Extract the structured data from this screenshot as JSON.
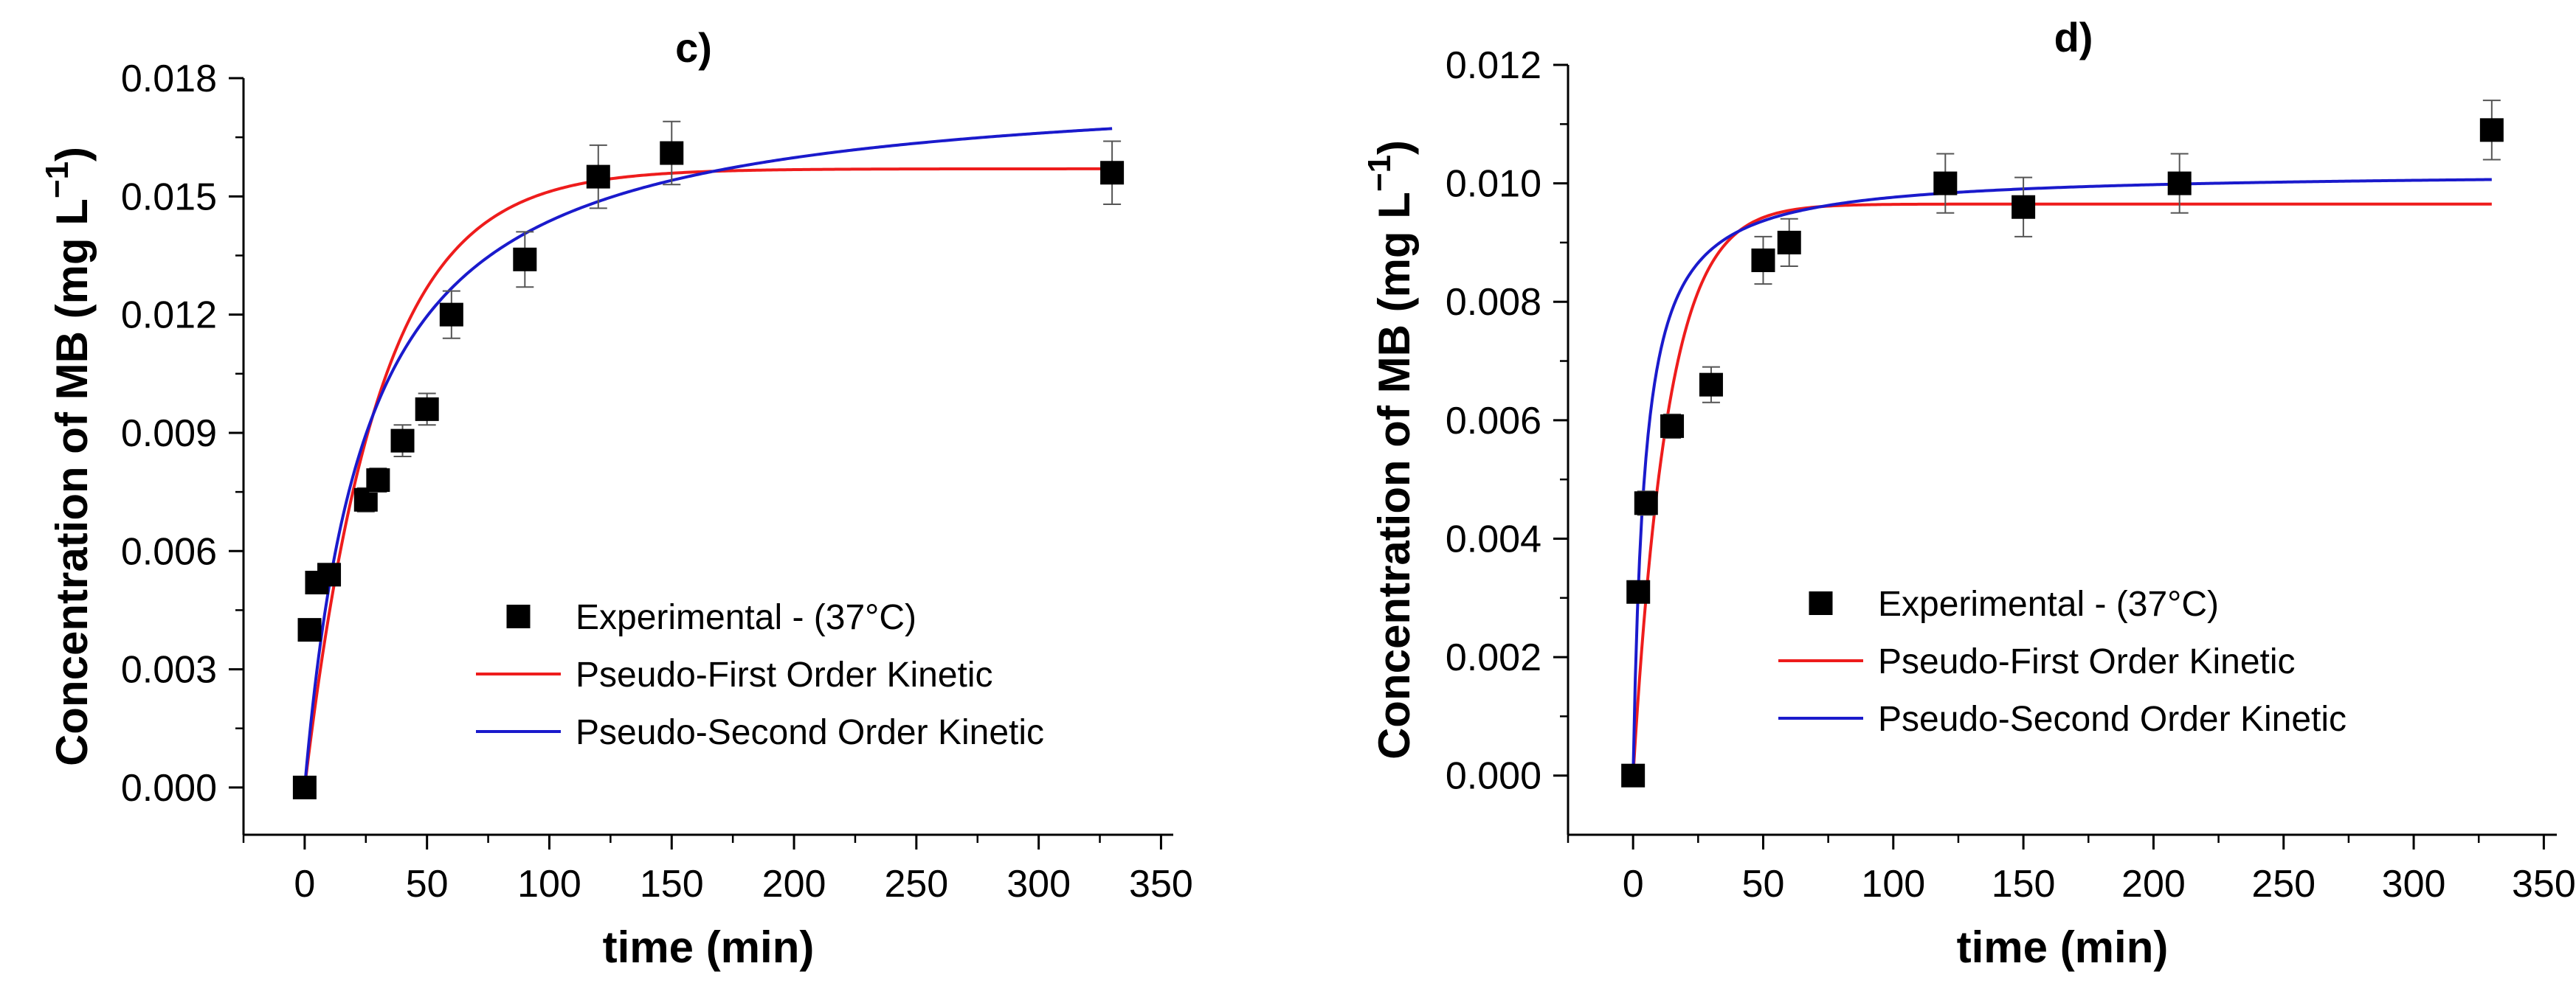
{
  "chart_data": [
    {
      "panel": "c)",
      "type": "scatter",
      "title": "c)",
      "xlabel": "time (min)",
      "ylabel": "Concentration of MB (mg L",
      "ylabel_sup": "−1",
      "ylabel_close": ")",
      "xlim": [
        -25,
        355
      ],
      "ylim": [
        -0.0012,
        0.018
      ],
      "xticks": [
        0,
        50,
        100,
        150,
        200,
        250,
        300,
        350
      ],
      "xtick_labels": [
        "0",
        "50",
        "100",
        "150",
        "200",
        "250",
        "300",
        "350"
      ],
      "yticks": [
        0.0,
        0.003,
        0.006,
        0.009,
        0.012,
        0.015,
        0.018
      ],
      "ytick_labels": [
        "0.000",
        "0.003",
        "0.006",
        "0.009",
        "0.012",
        "0.015",
        "0.018"
      ],
      "legend": {
        "position": "center-bottom",
        "entries": [
          "Experimental - (37°C)",
          "Pseudo-First Order Kinetic",
          "Pseudo-Second Order Kinetic"
        ]
      },
      "series": [
        {
          "name": "Experimental - (37°C)",
          "kind": "points",
          "color": "#000000",
          "x": [
            0,
            2,
            5,
            10,
            25,
            30,
            40,
            50,
            60,
            90,
            120,
            150,
            330
          ],
          "y": [
            0.0,
            0.004,
            0.0052,
            0.0054,
            0.0073,
            0.0078,
            0.0088,
            0.0096,
            0.012,
            0.0134,
            0.0155,
            0.0161,
            0.0156
          ],
          "err": [
            0.0001,
            0.0002,
            0.0002,
            0.0002,
            0.0003,
            0.0003,
            0.0004,
            0.0004,
            0.0006,
            0.0007,
            0.0008,
            0.0008,
            0.0008
          ]
        },
        {
          "name": "Pseudo-First Order Kinetic",
          "kind": "line",
          "color": "#ee1c1c",
          "model": "first",
          "qe": 0.0157,
          "k": 0.033,
          "x_range": [
            0,
            330
          ]
        },
        {
          "name": "Pseudo-Second Order Kinetic",
          "kind": "line",
          "color": "#1a1acc",
          "model": "second",
          "qe": 0.018,
          "k": 2.2,
          "x_range": [
            0,
            330
          ]
        }
      ]
    },
    {
      "panel": "d)",
      "type": "scatter",
      "title": "d)",
      "xlabel": "time (min)",
      "ylabel": "Concentration of MB (mg L",
      "ylabel_sup": "−1",
      "ylabel_close": ")",
      "xlim": [
        -25,
        355
      ],
      "ylim": [
        -0.001,
        0.012
      ],
      "xticks": [
        0,
        50,
        100,
        150,
        200,
        250,
        300,
        350
      ],
      "xtick_labels": [
        "0",
        "50",
        "100",
        "150",
        "200",
        "250",
        "300",
        "350"
      ],
      "yticks": [
        0.0,
        0.002,
        0.004,
        0.006,
        0.008,
        0.01,
        0.012
      ],
      "ytick_labels": [
        "0.000",
        "0.002",
        "0.004",
        "0.006",
        "0.008",
        "0.010",
        "0.012"
      ],
      "legend": {
        "position": "center-bottom",
        "entries": [
          "Experimental - (37°C)",
          "Pseudo-First Order Kinetic",
          "Pseudo-Second Order Kinetic"
        ]
      },
      "series": [
        {
          "name": "Experimental - (37°C)",
          "kind": "points",
          "color": "#000000",
          "x": [
            0,
            2,
            5,
            15,
            30,
            50,
            60,
            120,
            150,
            210,
            330
          ],
          "y": [
            0.0,
            0.0031,
            0.0046,
            0.0059,
            0.0066,
            0.0087,
            0.009,
            0.01,
            0.0096,
            0.01,
            0.0109
          ],
          "err": [
            0.0001,
            0.0001,
            0.0002,
            0.0002,
            0.0003,
            0.0004,
            0.0004,
            0.0005,
            0.0005,
            0.0005,
            0.0005
          ]
        },
        {
          "name": "Pseudo-First Order Kinetic",
          "kind": "line",
          "color": "#ee1c1c",
          "model": "first",
          "qe": 0.00965,
          "k": 0.075,
          "x_range": [
            0,
            330
          ]
        },
        {
          "name": "Pseudo-Second Order Kinetic",
          "kind": "line",
          "color": "#1a1acc",
          "model": "second",
          "qe": 0.0102,
          "k": 22,
          "x_range": [
            0,
            330
          ]
        }
      ]
    }
  ]
}
